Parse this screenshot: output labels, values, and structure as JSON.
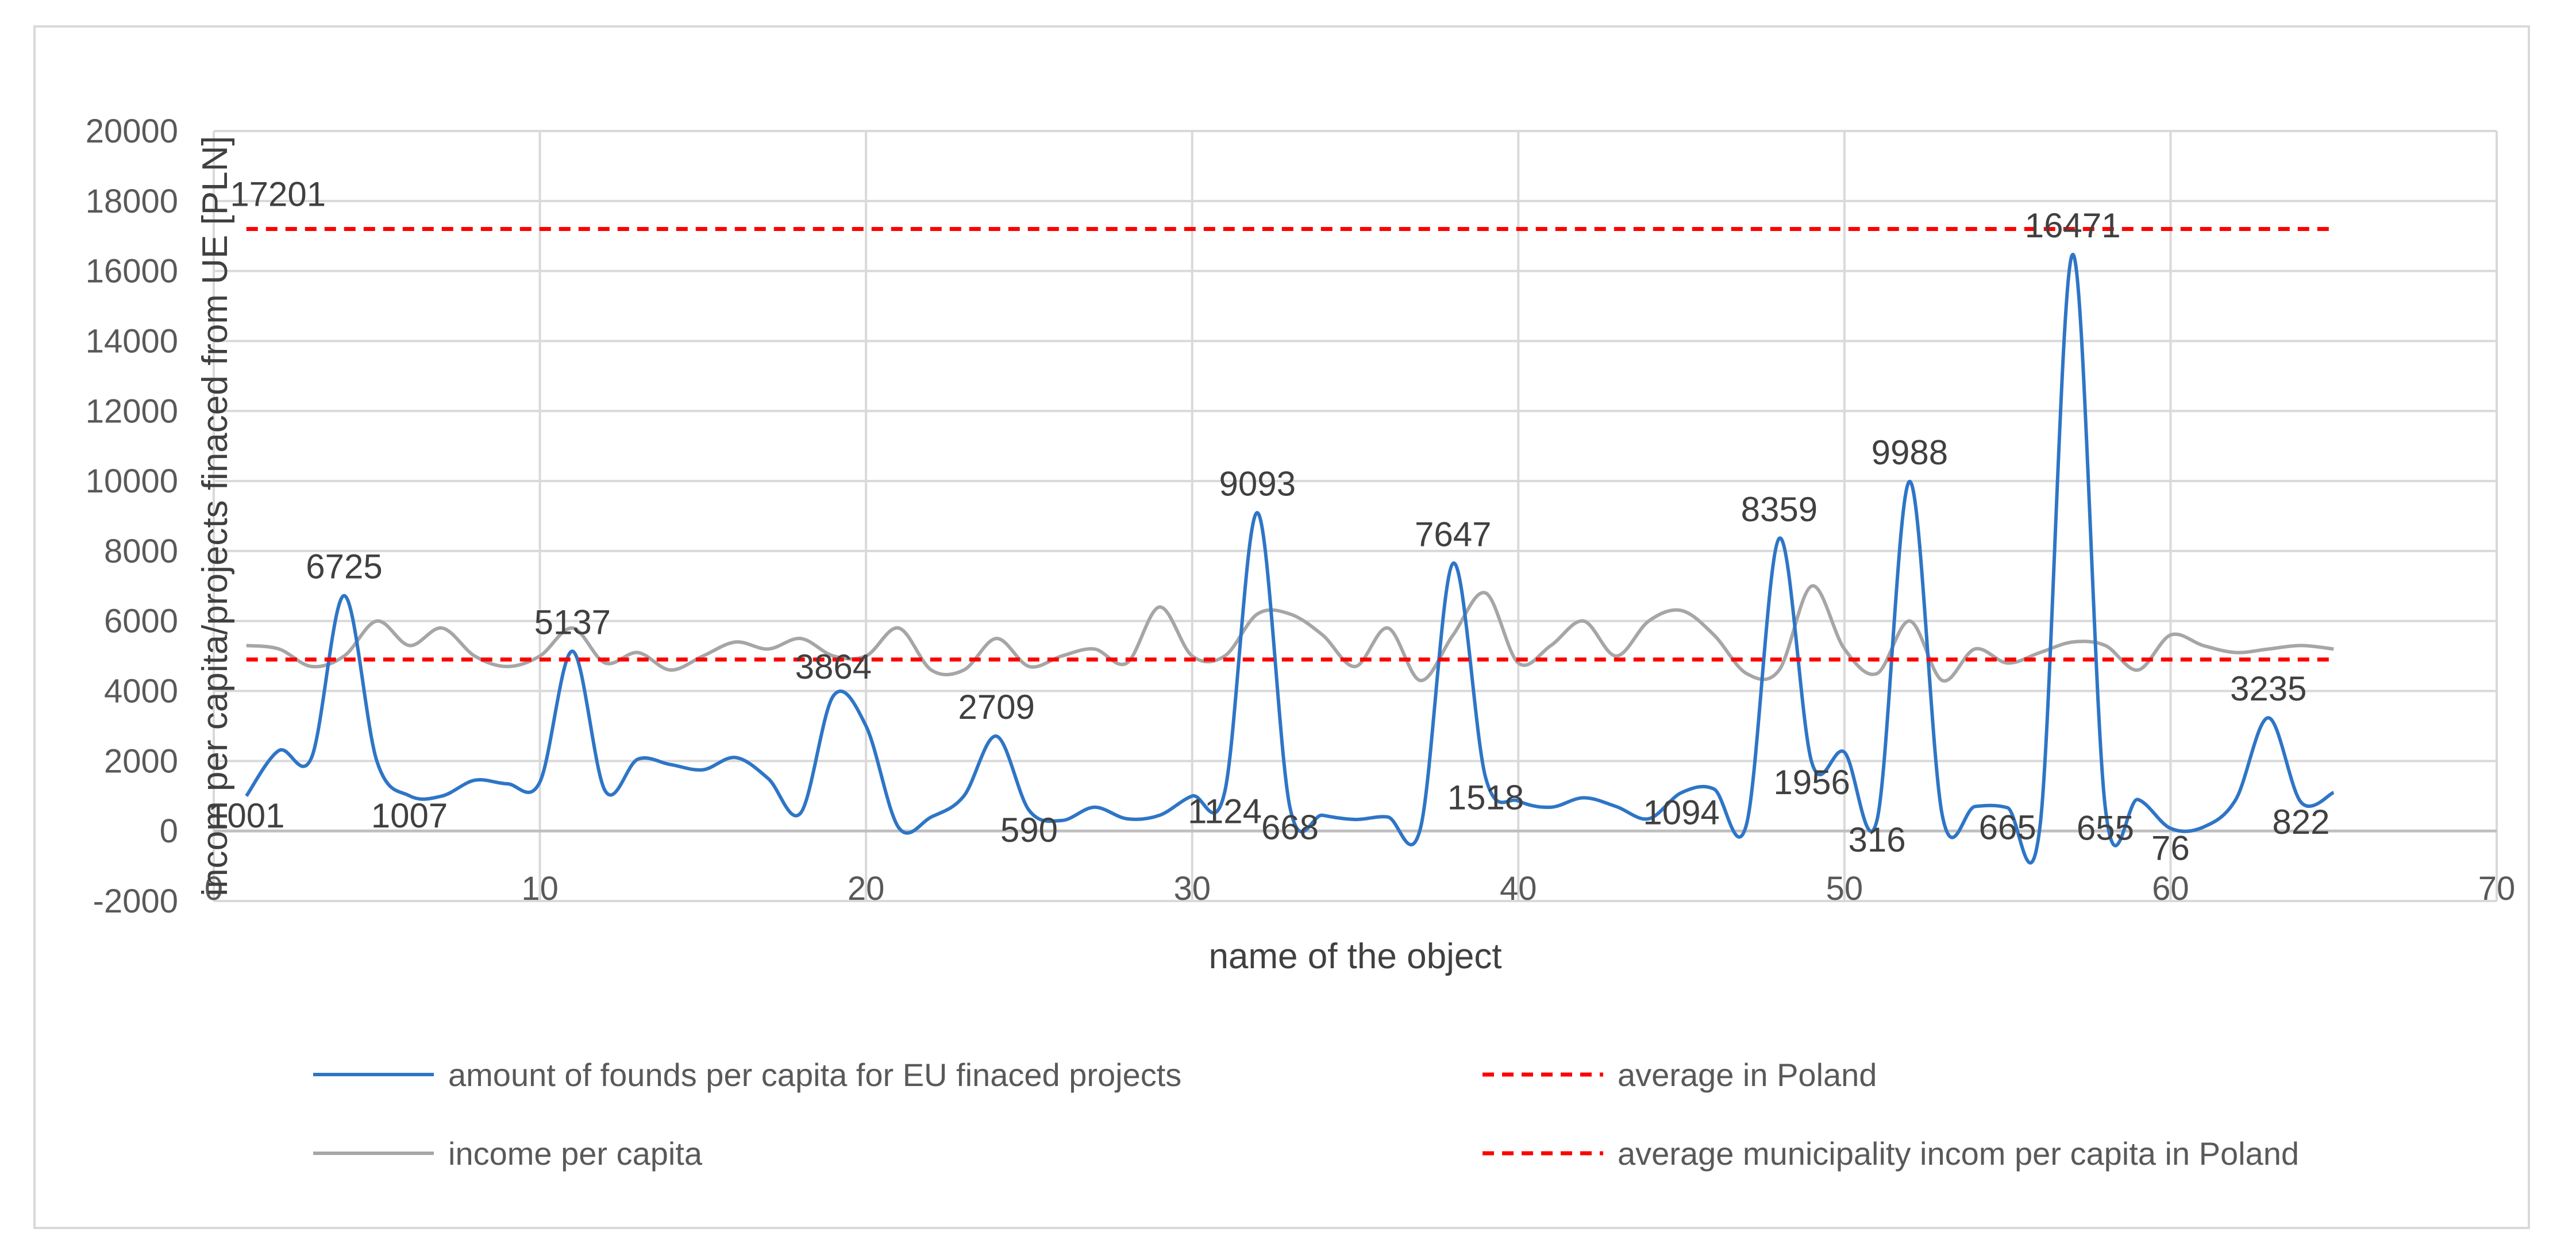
{
  "chart_data": {
    "type": "line",
    "xlabel": "name of the object",
    "ylabel": "incom per capita/projects finaced from UE [PLN]",
    "xlim": [
      0,
      70
    ],
    "ylim": [
      -2000,
      20000
    ],
    "x_ticks": [
      0,
      10,
      20,
      30,
      40,
      50,
      60,
      70
    ],
    "y_ticks": [
      -2000,
      0,
      2000,
      4000,
      6000,
      8000,
      10000,
      12000,
      14000,
      16000,
      18000,
      20000
    ],
    "grid": true,
    "legend_position": "bottom",
    "series": [
      {
        "name": "amount of founds per capita for EU finaced projects",
        "color": "#2e75c6",
        "style": "solid",
        "x": [
          1,
          2,
          3,
          4,
          5,
          6,
          7,
          8,
          9,
          10,
          11,
          12,
          13,
          14,
          15,
          16,
          17,
          18,
          19,
          20,
          21,
          22,
          23,
          24,
          25,
          26,
          27,
          28,
          29,
          30,
          31,
          32,
          33,
          34,
          35,
          36,
          37,
          38,
          39,
          40,
          41,
          42,
          43,
          44,
          45,
          46,
          47,
          48,
          49,
          50,
          51,
          52,
          53,
          54,
          55,
          56,
          57,
          58,
          59,
          60,
          61,
          62,
          63,
          64,
          65
        ],
        "values": [
          1001,
          2300,
          2100,
          6725,
          2000,
          1007,
          1000,
          1450,
          1350,
          1400,
          5137,
          1150,
          2050,
          1900,
          1750,
          2100,
          1500,
          520,
          3864,
          3000,
          100,
          400,
          1000,
          2709,
          590,
          300,
          680,
          350,
          450,
          1000,
          1124,
          9093,
          668,
          450,
          330,
          400,
          80,
          7647,
          1518,
          860,
          680,
          950,
          700,
          350,
          1094,
          1200,
          200,
          8359,
          1956,
          2250,
          316,
          9988,
          450,
          700,
          665,
          160,
          16471,
          655,
          900,
          76,
          110,
          900,
          3235,
          822,
          1100
        ]
      },
      {
        "name": "income per capita",
        "color": "#a6a6a6",
        "style": "solid",
        "x": [
          1,
          2,
          3,
          4,
          5,
          6,
          7,
          8,
          9,
          10,
          11,
          12,
          13,
          14,
          15,
          16,
          17,
          18,
          19,
          20,
          21,
          22,
          23,
          24,
          25,
          26,
          27,
          28,
          29,
          30,
          31,
          32,
          33,
          34,
          35,
          36,
          37,
          38,
          39,
          40,
          41,
          42,
          43,
          44,
          45,
          46,
          47,
          48,
          49,
          50,
          51,
          52,
          53,
          54,
          55,
          56,
          57,
          58,
          59,
          60,
          61,
          62,
          63,
          64,
          65
        ],
        "values": [
          5300,
          5200,
          4700,
          5000,
          6000,
          5300,
          5800,
          5000,
          4700,
          5000,
          5800,
          4800,
          5100,
          4600,
          5000,
          5400,
          5200,
          5500,
          5000,
          5000,
          5800,
          4600,
          4600,
          5500,
          4700,
          5000,
          5200,
          4800,
          6400,
          5000,
          5000,
          6200,
          6200,
          5600,
          4700,
          5800,
          4300,
          5600,
          6800,
          4800,
          5300,
          6000,
          5000,
          6000,
          6300,
          5600,
          4500,
          4600,
          7000,
          5200,
          4500,
          6000,
          4300,
          5200,
          4800,
          5100,
          5400,
          5300,
          4600,
          5600,
          5300,
          5100,
          5200,
          5300,
          5200
        ]
      },
      {
        "name": "average in Poland",
        "color": "#ff0000",
        "style": "dashed",
        "x": [
          1,
          65
        ],
        "values": [
          17201,
          17201
        ]
      },
      {
        "name": "average municipality incom per capita in Poland",
        "color": "#ff0000",
        "style": "dashed",
        "x": [
          1,
          65
        ],
        "values": [
          4900,
          4900
        ]
      }
    ],
    "data_labels": [
      {
        "x": 1,
        "value": 1001,
        "text": "1001"
      },
      {
        "x": 4,
        "value": 6725,
        "text": "6725"
      },
      {
        "x": 6,
        "value": 1007,
        "text": "1007"
      },
      {
        "x": 11,
        "value": 5137,
        "text": "5137"
      },
      {
        "x": 19,
        "value": 3864,
        "text": "3864"
      },
      {
        "x": 24,
        "value": 2709,
        "text": "2709"
      },
      {
        "x": 25,
        "value": 590,
        "text": "590"
      },
      {
        "x": 31,
        "value": 1124,
        "text": "1124"
      },
      {
        "x": 32,
        "value": 9093,
        "text": "9093"
      },
      {
        "x": 33,
        "value": 668,
        "text": "668"
      },
      {
        "x": 38,
        "value": 7647,
        "text": "7647"
      },
      {
        "x": 39,
        "value": 1518,
        "text": "1518"
      },
      {
        "x": 45,
        "value": 1094,
        "text": "1094"
      },
      {
        "x": 48,
        "value": 8359,
        "text": "8359"
      },
      {
        "x": 49,
        "value": 1956,
        "text": "1956"
      },
      {
        "x": 51,
        "value": 316,
        "text": "316"
      },
      {
        "x": 52,
        "value": 9988,
        "text": "9988"
      },
      {
        "x": 55,
        "value": 665,
        "text": "665"
      },
      {
        "x": 57,
        "value": 16471,
        "text": "16471"
      },
      {
        "x": 58,
        "value": 655,
        "text": "655"
      },
      {
        "x": 60,
        "value": 76,
        "text": "76"
      },
      {
        "x": 63,
        "value": 3235,
        "text": "3235"
      },
      {
        "x": 64,
        "value": 822,
        "text": "822"
      },
      {
        "x": 1,
        "value": 17201,
        "text": "17201"
      }
    ]
  }
}
